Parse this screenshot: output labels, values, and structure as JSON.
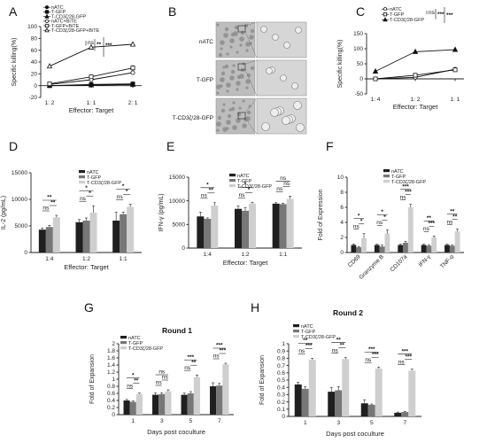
{
  "colors": {
    "black": "#1f1f1f",
    "gray": "#777777",
    "light": "#cfcfcf"
  },
  "panelB": {
    "letter": "B",
    "rows": [
      "nATC",
      "T-GFP",
      "T-CD3ζ/28-GFP"
    ]
  },
  "chart_data": [
    {
      "id": "A",
      "letter": "A",
      "type": "line",
      "ylabel": "Specific killing(%)",
      "xlabel": "Effector: Target",
      "categories": [
        "1: 2",
        "1: 1",
        "2: 1"
      ],
      "ylim": [
        -20,
        100
      ],
      "yticks": [
        -20,
        0,
        20,
        40,
        60,
        80,
        100
      ],
      "series": [
        {
          "name": "nATC",
          "marker": "circle",
          "fill": "black",
          "values": [
            0,
            1,
            2
          ],
          "err": [
            1,
            1,
            1
          ]
        },
        {
          "name": "T-GFP",
          "marker": "square",
          "fill": "black",
          "values": [
            0,
            2,
            3
          ],
          "err": [
            1,
            1,
            1
          ]
        },
        {
          "name": "T-CD3ζ/28-GFP",
          "marker": "triangle",
          "fill": "black",
          "values": [
            0,
            1,
            2
          ],
          "err": [
            1,
            1,
            1
          ]
        },
        {
          "name": "nATC+BiTE",
          "marker": "circle",
          "fill": "white",
          "values": [
            2,
            10,
            22
          ],
          "err": [
            1,
            2,
            3
          ]
        },
        {
          "name": "T-GFP+BiTE",
          "marker": "square",
          "fill": "white",
          "values": [
            3,
            15,
            30
          ],
          "err": [
            1,
            3,
            5
          ]
        },
        {
          "name": "T-CD3ζ/28-GFP+BiTE",
          "marker": "triangle",
          "fill": "white",
          "values": [
            33,
            65,
            70
          ],
          "err": [
            2,
            2,
            2
          ]
        }
      ],
      "sig": [
        "ns",
        "**",
        "***"
      ]
    },
    {
      "id": "C",
      "letter": "C",
      "type": "line",
      "ylabel": "Specific killing(%)",
      "xlabel": "Effector: Target",
      "categories": [
        "1: 4",
        "1: 2",
        "1: 1"
      ],
      "ylim": [
        -20,
        150
      ],
      "yticks": [
        -50,
        0,
        50,
        100,
        150
      ],
      "ylim_draw": [
        -50,
        150
      ],
      "series": [
        {
          "name": "nATC",
          "marker": "circle",
          "fill": "white",
          "values": [
            0,
            5,
            32
          ],
          "err": [
            2,
            5,
            5
          ]
        },
        {
          "name": "T-GFP",
          "marker": "square",
          "fill": "white",
          "values": [
            0,
            12,
            30
          ],
          "err": [
            3,
            8,
            5
          ]
        },
        {
          "name": "T-CD3ζ/28-GFP",
          "marker": "triangle",
          "fill": "black",
          "values": [
            25,
            90,
            97
          ],
          "err": [
            3,
            2,
            2
          ]
        }
      ],
      "sig": [
        "ns",
        "***",
        "***"
      ]
    },
    {
      "id": "D",
      "letter": "D",
      "type": "bar",
      "ylabel": "IL-2 (pg/mL)",
      "xlabel": "Effector: Target",
      "categories": [
        "1:4",
        "1:2",
        "1:1"
      ],
      "ylim": [
        0,
        15000
      ],
      "yticks": [
        0,
        5000,
        10000,
        15000
      ],
      "series": [
        {
          "name": "nATC",
          "values": [
            4300,
            5700,
            6000
          ],
          "err": [
            300,
            500,
            1600
          ]
        },
        {
          "name": "T-GFP",
          "values": [
            4800,
            6000,
            7200
          ],
          "err": [
            300,
            500,
            400
          ]
        },
        {
          "name": "T-CD3ζ/28-GFP",
          "values": [
            6600,
            7500,
            8600
          ],
          "err": [
            400,
            1300,
            500
          ]
        }
      ],
      "sig": [
        [
          "ns",
          "**",
          "**"
        ],
        [
          "ns",
          "*",
          "*"
        ],
        [
          "ns",
          "*",
          "*"
        ]
      ]
    },
    {
      "id": "E",
      "letter": "E",
      "type": "bar",
      "ylabel": "IFN-γ (pg/mL)",
      "xlabel": "Effector: Target",
      "categories": [
        "1:4",
        "1:2",
        "1:1"
      ],
      "ylim": [
        0,
        15000
      ],
      "yticks": [
        0,
        5000,
        10000,
        15000
      ],
      "series": [
        {
          "name": "nATC",
          "values": [
            6700,
            8300,
            9400
          ],
          "err": [
            900,
            600,
            200
          ]
        },
        {
          "name": "T-GFP",
          "values": [
            6200,
            7900,
            9300
          ],
          "err": [
            200,
            700,
            200
          ]
        },
        {
          "name": "T-CD3ζ/28-GFP",
          "values": [
            9000,
            9400,
            10400
          ],
          "err": [
            600,
            300,
            600
          ]
        }
      ],
      "sig": [
        [
          "ns",
          "**",
          "*"
        ],
        [
          "ns",
          "*",
          "*"
        ],
        [
          "ns",
          "ns",
          "ns"
        ]
      ]
    },
    {
      "id": "F",
      "letter": "F",
      "type": "bar",
      "ylabel": "Fold of Expression",
      "categories": [
        "CD69",
        "Granzyme B",
        "CD107a",
        "IFN-γ",
        "TNF-α"
      ],
      "ylim": [
        0,
        10
      ],
      "yticks": [
        0,
        2,
        4,
        6,
        8,
        10
      ],
      "series": [
        {
          "name": "nATC",
          "values": [
            1,
            1,
            1,
            1,
            1
          ],
          "err": [
            0.1,
            0.1,
            0.1,
            0.1,
            0.1
          ]
        },
        {
          "name": "T-GFP",
          "values": [
            0.7,
            0.8,
            1.3,
            0.9,
            0.9
          ],
          "err": [
            0.1,
            0.2,
            0.2,
            0.1,
            0.1
          ]
        },
        {
          "name": "T-CD3ζ/28-GFP",
          "values": [
            1.9,
            2.5,
            6.0,
            2.0,
            2.8
          ],
          "err": [
            0.6,
            0.5,
            0.4,
            0.2,
            0.3
          ]
        }
      ],
      "sig": [
        [
          "ns",
          "*",
          "*"
        ],
        [
          "ns",
          "*",
          "*"
        ],
        [
          "ns",
          "***",
          "***"
        ],
        [
          "ns",
          "***",
          "**"
        ],
        [
          "ns",
          "**",
          "**"
        ]
      ]
    },
    {
      "id": "G",
      "letter": "G",
      "type": "bar",
      "title": "Round 1",
      "ylabel": "Fold of Expansion",
      "xlabel": "Days post coculture",
      "categories": [
        "1",
        "3",
        "5",
        "7"
      ],
      "ylim": [
        0,
        2.0
      ],
      "yticks": [
        0.0,
        0.2,
        0.4,
        0.6,
        0.8,
        1.0,
        1.2,
        1.4,
        1.6,
        1.8,
        2.0
      ],
      "series": [
        {
          "name": "nATC",
          "values": [
            0.4,
            0.56,
            0.56,
            0.8
          ],
          "err": [
            0.03,
            0.05,
            0.05,
            0.1
          ]
        },
        {
          "name": "T-GFP",
          "values": [
            0.36,
            0.58,
            0.6,
            0.82
          ],
          "err": [
            0.03,
            0.04,
            0.05,
            0.06
          ]
        },
        {
          "name": "T-CD3ζ/28-GFP",
          "values": [
            0.58,
            0.66,
            1.06,
            1.42
          ],
          "err": [
            0.03,
            0.04,
            0.06,
            0.03
          ]
        }
      ],
      "sig": [
        [
          "ns",
          "**",
          "*"
        ],
        [
          "ns",
          "ns",
          "ns"
        ],
        [
          "ns",
          "**",
          "***"
        ],
        [
          "ns",
          "***",
          "***"
        ]
      ]
    },
    {
      "id": "H",
      "letter": "H",
      "type": "bar",
      "title": "Round 2",
      "ylabel": "Fold of Expansion",
      "xlabel": "Days post coculture",
      "categories": [
        "1",
        "3",
        "5",
        "7"
      ],
      "ylim": [
        0,
        1.0
      ],
      "yticks": [
        0.0,
        0.1,
        0.2,
        0.3,
        0.4,
        0.5,
        0.6,
        0.7,
        0.8,
        0.9,
        1.0
      ],
      "series": [
        {
          "name": "nATC",
          "values": [
            0.44,
            0.34,
            0.18,
            0.05
          ],
          "err": [
            0.03,
            0.06,
            0.05,
            0.01
          ]
        },
        {
          "name": "T-GFP",
          "values": [
            0.38,
            0.36,
            0.16,
            0.06
          ],
          "err": [
            0.03,
            0.05,
            0.01,
            0.01
          ]
        },
        {
          "name": "T-CD3ζ/28-GFP",
          "values": [
            0.78,
            0.79,
            0.66,
            0.63
          ],
          "err": [
            0.02,
            0.02,
            0.02,
            0.02
          ]
        }
      ],
      "sig": [
        [
          "ns",
          "***",
          "**"
        ],
        [
          "ns",
          "**",
          "**"
        ],
        [
          "ns",
          "***",
          "***"
        ],
        [
          "ns",
          "***",
          "***"
        ]
      ]
    }
  ]
}
